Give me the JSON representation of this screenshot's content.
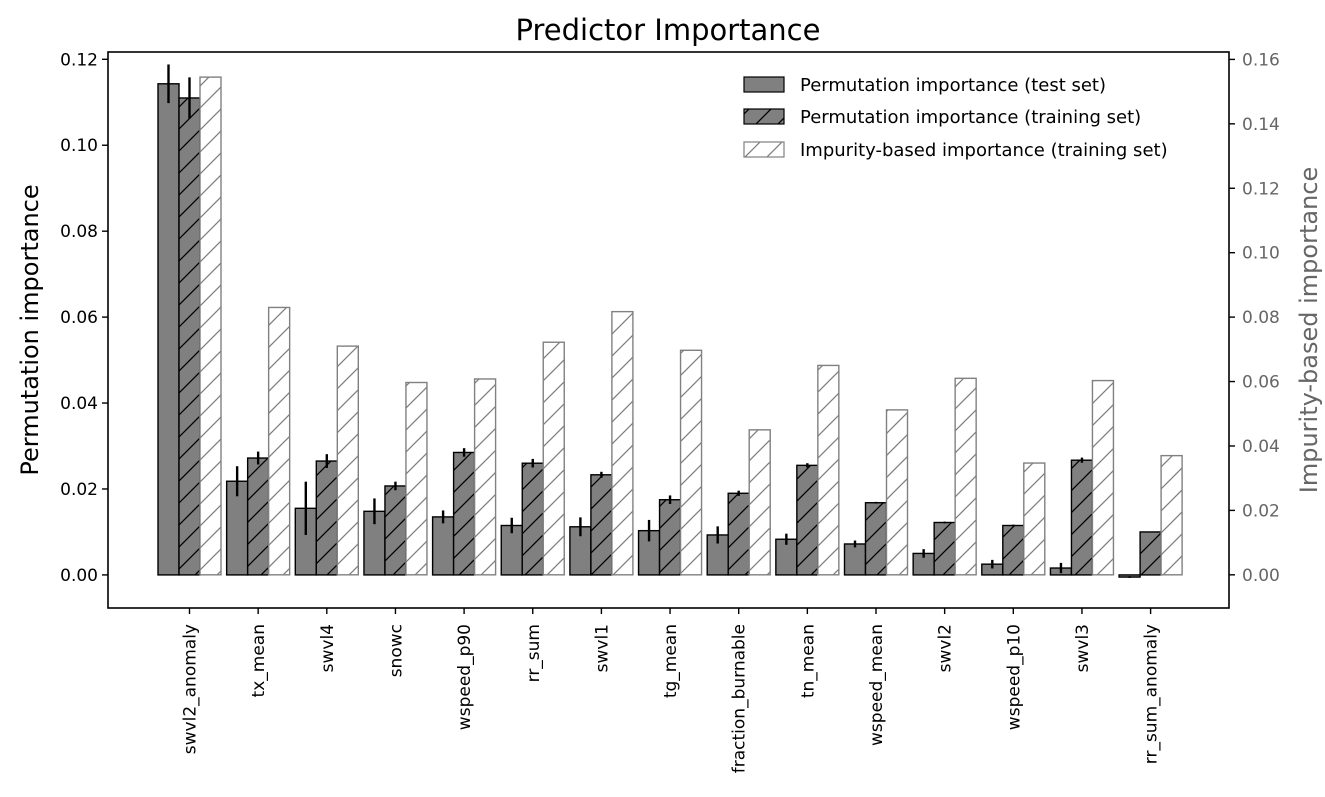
{
  "chart_data": {
    "type": "bar",
    "title": "Predictor Importance",
    "ylabel": "Permutation importance",
    "ylabel_right": "Impurity-based importance",
    "categories": [
      "swvl2_anomaly",
      "tx_mean",
      "swvl4",
      "snowc",
      "wspeed_p90",
      "rr_sum",
      "swvl1",
      "tg_mean",
      "fraction_burnable",
      "tn_mean",
      "wspeed_mean",
      "swvl2",
      "wspeed_p10",
      "swvl3",
      "rr_sum_anomaly"
    ],
    "ylim": [
      -0.0077,
      0.1217
    ],
    "ylim_right": [
      -0.0103,
      0.1623
    ],
    "yticks": [
      "0.00",
      "0.02",
      "0.04",
      "0.06",
      "0.08",
      "0.10",
      "0.12"
    ],
    "yticks_right": [
      "0.00",
      "0.02",
      "0.04",
      "0.06",
      "0.08",
      "0.10",
      "0.12",
      "0.14",
      "0.16"
    ],
    "legend_position": "top-right",
    "series": [
      {
        "name": "Permutation importance (test set)",
        "axis": "left",
        "hatch": false,
        "values": [
          0.1143,
          0.0218,
          0.0155,
          0.0148,
          0.0135,
          0.0115,
          0.0112,
          0.0103,
          0.0093,
          0.0083,
          0.0072,
          0.005,
          0.0025,
          0.0016,
          -0.0005
        ],
        "errors": [
          0.0045,
          0.0035,
          0.0062,
          0.003,
          0.0015,
          0.0018,
          0.0022,
          0.0025,
          0.002,
          0.0013,
          0.0008,
          0.001,
          0.001,
          0.0012,
          0.0002
        ]
      },
      {
        "name": "Permutation importance (training set)",
        "axis": "left",
        "hatch": true,
        "values": [
          0.111,
          0.0272,
          0.0265,
          0.0207,
          0.0285,
          0.026,
          0.0233,
          0.0175,
          0.019,
          0.0255,
          0.0168,
          0.0122,
          0.0115,
          0.0267,
          0.01
        ],
        "errors": [
          0.0048,
          0.0015,
          0.0016,
          0.001,
          0.001,
          0.001,
          0.0007,
          0.001,
          0.0006,
          0.0005,
          0.0002,
          0.0002,
          0.0002,
          0.0006,
          0.0001
        ]
      },
      {
        "name": "Impurity-based importance (training set)",
        "axis": "right",
        "hatch": true,
        "values": [
          0.1545,
          0.083,
          0.071,
          0.0597,
          0.0608,
          0.0722,
          0.0817,
          0.0697,
          0.045,
          0.065,
          0.0512,
          0.061,
          0.0347,
          0.0603,
          0.037
        ]
      }
    ]
  }
}
